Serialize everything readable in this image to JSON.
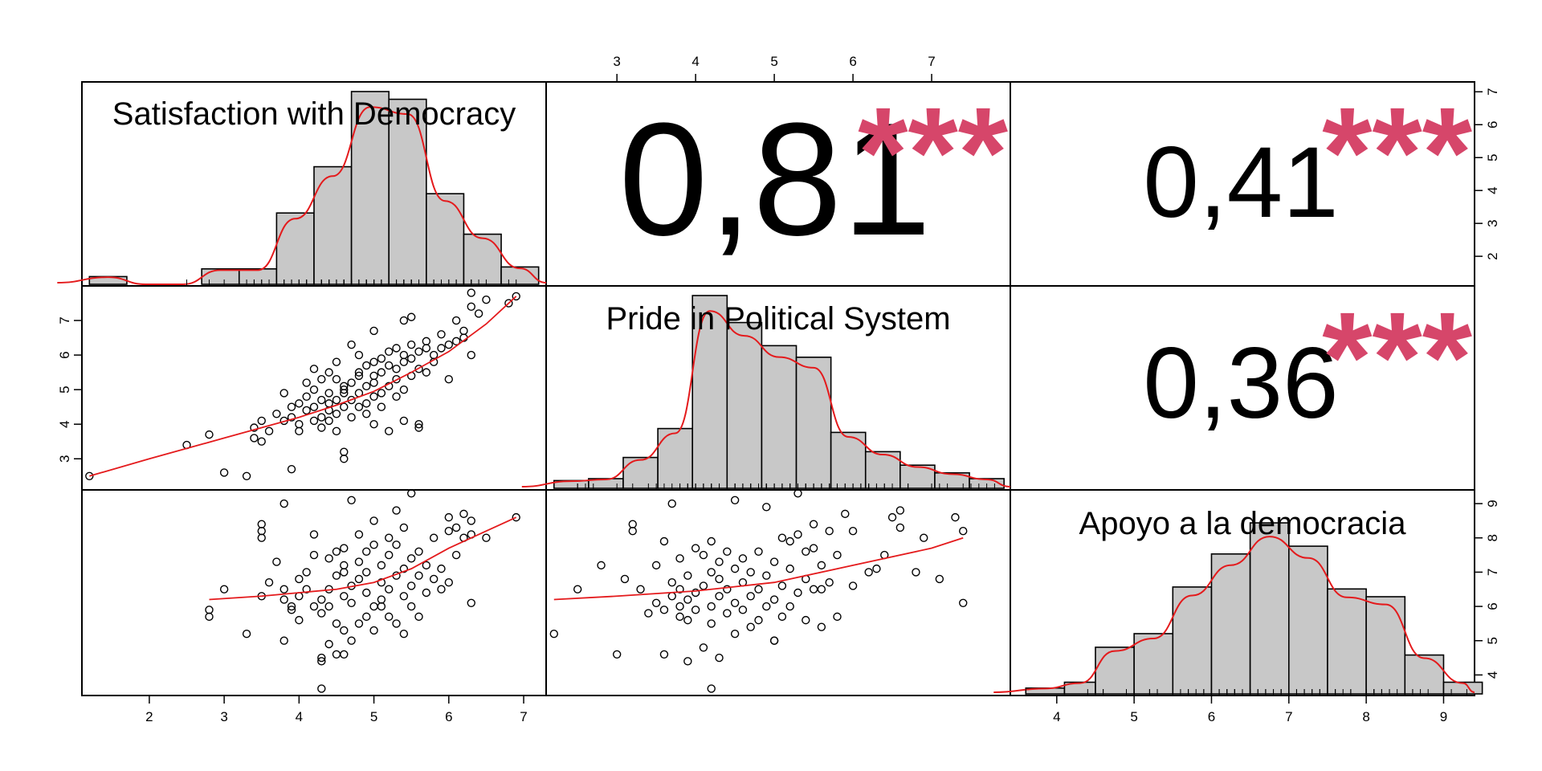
{
  "colors": {
    "stars": "#d6466a",
    "curve": "#e41a1c",
    "bar_fill": "#c8c8c8"
  },
  "chart_data": {
    "type": "scatter-matrix",
    "variables": [
      {
        "name": "Satisfaction with Democracy",
        "range": [
          1.1,
          7.3
        ],
        "ticks": [
          2,
          3,
          4,
          5,
          6,
          7
        ],
        "hist": {
          "breaks": [
            1.2,
            1.7,
            2.2,
            2.7,
            3.2,
            3.7,
            4.2,
            4.7,
            5.2,
            5.7,
            6.2,
            6.7,
            7.2
          ],
          "relative_heights": [
            0.04,
            0.0,
            0.0,
            0.08,
            0.08,
            0.37,
            0.61,
            1.0,
            0.96,
            0.47,
            0.26,
            0.09
          ]
        }
      },
      {
        "name": "Pride in Political System",
        "range": [
          2.1,
          8.0
        ],
        "ticks": [
          3,
          4,
          5,
          6,
          7
        ],
        "hist": {
          "breaks": [
            2.2,
            2.64,
            3.08,
            3.52,
            3.96,
            4.4,
            4.84,
            5.28,
            5.72,
            6.16,
            6.6,
            7.04,
            7.48,
            7.92
          ],
          "relative_heights": [
            0.04,
            0.05,
            0.16,
            0.31,
            1.0,
            0.86,
            0.74,
            0.68,
            0.29,
            0.19,
            0.12,
            0.08,
            0.05
          ]
        }
      },
      {
        "name": "Apoyo a la democracia",
        "range": [
          3.4,
          9.4
        ],
        "ticks": [
          4,
          5,
          6,
          7,
          8,
          9
        ],
        "hist": {
          "breaks": [
            3.6,
            4.1,
            4.5,
            5.0,
            5.5,
            6.0,
            6.5,
            7.0,
            7.5,
            8.0,
            8.5,
            9.0,
            9.5
          ],
          "relative_heights": [
            0.03,
            0.06,
            0.24,
            0.31,
            0.55,
            0.72,
            0.88,
            0.76,
            0.54,
            0.5,
            0.2,
            0.06
          ]
        }
      }
    ],
    "correlations": [
      {
        "pair": [
          "Satisfaction with Democracy",
          "Pride in Political System"
        ],
        "value": "0,81",
        "stars": "***"
      },
      {
        "pair": [
          "Satisfaction with Democracy",
          "Apoyo a la democracia"
        ],
        "value": "0,41",
        "stars": "***"
      },
      {
        "pair": [
          "Pride in Political System",
          "Apoyo a la democracia"
        ],
        "value": "0,36",
        "stars": "***"
      }
    ],
    "scatter_sat_vs_pride": [
      [
        1.2,
        2.5
      ],
      [
        2.5,
        3.4
      ],
      [
        2.8,
        3.7
      ],
      [
        3.0,
        2.6
      ],
      [
        3.3,
        2.5
      ],
      [
        3.4,
        3.9
      ],
      [
        3.4,
        3.6
      ],
      [
        3.5,
        4.1
      ],
      [
        3.5,
        3.5
      ],
      [
        3.6,
        3.8
      ],
      [
        3.7,
        4.3
      ],
      [
        3.8,
        4.1
      ],
      [
        3.8,
        4.9
      ],
      [
        3.9,
        2.7
      ],
      [
        3.9,
        4.2
      ],
      [
        3.9,
        4.5
      ],
      [
        4.0,
        3.8
      ],
      [
        4.0,
        4.6
      ],
      [
        4.0,
        4.0
      ],
      [
        4.1,
        4.4
      ],
      [
        4.1,
        4.8
      ],
      [
        4.2,
        4.1
      ],
      [
        4.2,
        4.5
      ],
      [
        4.2,
        5.0
      ],
      [
        4.3,
        4.2
      ],
      [
        4.3,
        4.7
      ],
      [
        4.3,
        3.9
      ],
      [
        4.3,
        5.3
      ],
      [
        4.4,
        4.4
      ],
      [
        4.4,
        4.6
      ],
      [
        4.4,
        4.9
      ],
      [
        4.4,
        4.1
      ],
      [
        4.5,
        3.8
      ],
      [
        4.5,
        5.3
      ],
      [
        4.5,
        4.3
      ],
      [
        4.5,
        4.7
      ],
      [
        4.6,
        4.5
      ],
      [
        4.6,
        5.0
      ],
      [
        4.6,
        4.9
      ],
      [
        4.6,
        5.1
      ],
      [
        4.6,
        3.0
      ],
      [
        4.6,
        3.2
      ],
      [
        4.7,
        4.2
      ],
      [
        4.7,
        5.2
      ],
      [
        4.7,
        6.3
      ],
      [
        4.7,
        4.7
      ],
      [
        4.8,
        5.4
      ],
      [
        4.8,
        4.5
      ],
      [
        4.8,
        4.9
      ],
      [
        4.8,
        5.5
      ],
      [
        4.9,
        4.6
      ],
      [
        4.9,
        5.1
      ],
      [
        4.9,
        5.7
      ],
      [
        4.9,
        4.3
      ],
      [
        5.0,
        5.2
      ],
      [
        5.0,
        5.4
      ],
      [
        5.0,
        4.8
      ],
      [
        5.0,
        6.7
      ],
      [
        5.0,
        5.8
      ],
      [
        5.1,
        4.9
      ],
      [
        5.1,
        5.5
      ],
      [
        5.1,
        5.9
      ],
      [
        5.1,
        4.5
      ],
      [
        5.2,
        5.1
      ],
      [
        5.2,
        5.7
      ],
      [
        5.2,
        6.1
      ],
      [
        5.2,
        3.8
      ],
      [
        5.3,
        5.3
      ],
      [
        5.3,
        5.6
      ],
      [
        5.3,
        6.2
      ],
      [
        5.3,
        4.8
      ],
      [
        5.4,
        5.0
      ],
      [
        5.4,
        5.8
      ],
      [
        5.4,
        6.0
      ],
      [
        5.4,
        7.0
      ],
      [
        5.4,
        4.1
      ],
      [
        5.5,
        5.4
      ],
      [
        5.5,
        5.9
      ],
      [
        5.5,
        6.3
      ],
      [
        5.5,
        7.1
      ],
      [
        5.6,
        5.6
      ],
      [
        5.6,
        6.1
      ],
      [
        5.6,
        4.0
      ],
      [
        5.6,
        3.9
      ],
      [
        5.7,
        5.5
      ],
      [
        5.7,
        6.2
      ],
      [
        5.7,
        6.4
      ],
      [
        5.8,
        5.8
      ],
      [
        5.8,
        6.0
      ],
      [
        5.9,
        6.2
      ],
      [
        5.9,
        6.6
      ],
      [
        6.0,
        6.3
      ],
      [
        6.0,
        5.3
      ],
      [
        6.1,
        6.4
      ],
      [
        6.1,
        7.0
      ],
      [
        6.2,
        6.7
      ],
      [
        6.2,
        6.5
      ],
      [
        6.3,
        7.4
      ],
      [
        6.3,
        7.8
      ],
      [
        6.3,
        6.0
      ],
      [
        6.4,
        7.2
      ],
      [
        6.5,
        7.6
      ],
      [
        6.8,
        7.5
      ],
      [
        6.9,
        7.7
      ],
      [
        4.2,
        5.6
      ],
      [
        4.5,
        5.8
      ],
      [
        4.8,
        6.0
      ],
      [
        5.0,
        4.0
      ],
      [
        4.4,
        5.5
      ],
      [
        4.1,
        5.2
      ]
    ],
    "scatter_sat_vs_apoyo": [
      [
        2.8,
        5.7
      ],
      [
        2.8,
        5.9
      ],
      [
        3.0,
        6.5
      ],
      [
        3.3,
        5.2
      ],
      [
        3.5,
        6.3
      ],
      [
        3.5,
        8.0
      ],
      [
        3.5,
        8.2
      ],
      [
        3.5,
        8.4
      ],
      [
        3.6,
        6.7
      ],
      [
        3.7,
        7.3
      ],
      [
        3.8,
        5.0
      ],
      [
        3.8,
        6.2
      ],
      [
        3.8,
        6.5
      ],
      [
        3.8,
        9.0
      ],
      [
        3.9,
        5.9
      ],
      [
        3.9,
        6.0
      ],
      [
        4.0,
        5.6
      ],
      [
        4.0,
        6.8
      ],
      [
        4.1,
        6.5
      ],
      [
        4.1,
        7.0
      ],
      [
        4.2,
        6.0
      ],
      [
        4.2,
        7.5
      ],
      [
        4.2,
        8.1
      ],
      [
        4.3,
        4.5
      ],
      [
        4.3,
        4.4
      ],
      [
        4.3,
        3.6
      ],
      [
        4.3,
        6.2
      ],
      [
        4.3,
        5.8
      ],
      [
        4.4,
        6.5
      ],
      [
        4.4,
        7.4
      ],
      [
        4.4,
        4.9
      ],
      [
        4.5,
        4.6
      ],
      [
        4.5,
        5.5
      ],
      [
        4.5,
        6.9
      ],
      [
        4.5,
        7.6
      ],
      [
        4.6,
        4.6
      ],
      [
        4.6,
        5.3
      ],
      [
        4.6,
        6.3
      ],
      [
        4.6,
        7.2
      ],
      [
        4.6,
        7.7
      ],
      [
        4.7,
        5.0
      ],
      [
        4.7,
        6.1
      ],
      [
        4.7,
        6.6
      ],
      [
        4.7,
        9.1
      ],
      [
        4.8,
        5.5
      ],
      [
        4.8,
        6.8
      ],
      [
        4.8,
        7.3
      ],
      [
        4.8,
        8.1
      ],
      [
        4.9,
        5.7
      ],
      [
        4.9,
        6.4
      ],
      [
        4.9,
        7.0
      ],
      [
        4.9,
        7.6
      ],
      [
        5.0,
        5.3
      ],
      [
        5.0,
        6.0
      ],
      [
        5.0,
        7.8
      ],
      [
        5.0,
        8.5
      ],
      [
        5.1,
        6.7
      ],
      [
        5.1,
        7.2
      ],
      [
        5.1,
        6.2
      ],
      [
        5.2,
        5.7
      ],
      [
        5.2,
        6.5
      ],
      [
        5.2,
        7.5
      ],
      [
        5.2,
        8.0
      ],
      [
        5.3,
        5.5
      ],
      [
        5.3,
        6.9
      ],
      [
        5.3,
        7.8
      ],
      [
        5.3,
        8.8
      ],
      [
        5.4,
        5.2
      ],
      [
        5.4,
        6.3
      ],
      [
        5.4,
        7.1
      ],
      [
        5.4,
        8.3
      ],
      [
        5.5,
        6.0
      ],
      [
        5.5,
        6.6
      ],
      [
        5.5,
        7.4
      ],
      [
        5.5,
        9.3
      ],
      [
        5.6,
        5.7
      ],
      [
        5.6,
        6.9
      ],
      [
        5.6,
        7.6
      ],
      [
        5.7,
        6.4
      ],
      [
        5.7,
        7.2
      ],
      [
        5.8,
        6.8
      ],
      [
        5.8,
        8.0
      ],
      [
        5.9,
        6.5
      ],
      [
        5.9,
        7.1
      ],
      [
        6.0,
        8.6
      ],
      [
        6.0,
        8.2
      ],
      [
        6.0,
        6.7
      ],
      [
        6.1,
        8.3
      ],
      [
        6.1,
        7.5
      ],
      [
        6.2,
        8.7
      ],
      [
        6.2,
        8.0
      ],
      [
        6.3,
        8.5
      ],
      [
        6.3,
        8.1
      ],
      [
        6.3,
        6.1
      ],
      [
        6.5,
        8.0
      ],
      [
        6.9,
        8.6
      ],
      [
        4.0,
        6.3
      ],
      [
        4.4,
        6.0
      ],
      [
        4.6,
        7.0
      ],
      [
        5.1,
        6.0
      ]
    ],
    "scatter_pride_vs_apoyo": [
      [
        2.2,
        5.2
      ],
      [
        2.5,
        6.5
      ],
      [
        2.8,
        7.2
      ],
      [
        3.0,
        4.6
      ],
      [
        3.1,
        6.8
      ],
      [
        3.2,
        8.2
      ],
      [
        3.2,
        8.4
      ],
      [
        3.3,
        6.5
      ],
      [
        3.4,
        5.8
      ],
      [
        3.5,
        6.1
      ],
      [
        3.5,
        7.2
      ],
      [
        3.6,
        4.6
      ],
      [
        3.6,
        7.9
      ],
      [
        3.6,
        5.9
      ],
      [
        3.7,
        6.3
      ],
      [
        3.7,
        6.7
      ],
      [
        3.7,
        9.0
      ],
      [
        3.8,
        5.7
      ],
      [
        3.8,
        6.0
      ],
      [
        3.8,
        6.5
      ],
      [
        3.8,
        7.4
      ],
      [
        3.9,
        4.4
      ],
      [
        3.9,
        5.6
      ],
      [
        3.9,
        6.2
      ],
      [
        3.9,
        6.9
      ],
      [
        4.0,
        5.9
      ],
      [
        4.0,
        6.4
      ],
      [
        4.0,
        7.7
      ],
      [
        4.1,
        4.8
      ],
      [
        4.1,
        6.6
      ],
      [
        4.1,
        7.5
      ],
      [
        4.2,
        3.6
      ],
      [
        4.2,
        5.5
      ],
      [
        4.2,
        6.0
      ],
      [
        4.2,
        7.0
      ],
      [
        4.2,
        7.9
      ],
      [
        4.3,
        4.5
      ],
      [
        4.3,
        6.3
      ],
      [
        4.3,
        6.8
      ],
      [
        4.3,
        7.3
      ],
      [
        4.4,
        5.8
      ],
      [
        4.4,
        6.5
      ],
      [
        4.4,
        7.6
      ],
      [
        4.5,
        5.2
      ],
      [
        4.5,
        6.1
      ],
      [
        4.5,
        7.1
      ],
      [
        4.5,
        9.1
      ],
      [
        4.6,
        5.9
      ],
      [
        4.6,
        6.7
      ],
      [
        4.6,
        7.4
      ],
      [
        4.7,
        5.4
      ],
      [
        4.7,
        6.3
      ],
      [
        4.7,
        7.0
      ],
      [
        4.8,
        5.6
      ],
      [
        4.8,
        6.5
      ],
      [
        4.8,
        7.6
      ],
      [
        4.9,
        6.0
      ],
      [
        4.9,
        6.9
      ],
      [
        4.9,
        8.9
      ],
      [
        5.0,
        5.0
      ],
      [
        5.0,
        5.0
      ],
      [
        5.0,
        6.2
      ],
      [
        5.0,
        7.3
      ],
      [
        5.1,
        5.7
      ],
      [
        5.1,
        6.6
      ],
      [
        5.1,
        8.0
      ],
      [
        5.2,
        6.0
      ],
      [
        5.2,
        7.1
      ],
      [
        5.2,
        7.9
      ],
      [
        5.3,
        6.4
      ],
      [
        5.3,
        8.1
      ],
      [
        5.3,
        9.3
      ],
      [
        5.4,
        5.6
      ],
      [
        5.4,
        6.8
      ],
      [
        5.4,
        7.6
      ],
      [
        5.5,
        6.5
      ],
      [
        5.5,
        7.7
      ],
      [
        5.5,
        8.4
      ],
      [
        5.6,
        5.4
      ],
      [
        5.6,
        6.5
      ],
      [
        5.6,
        7.2
      ],
      [
        5.7,
        6.7
      ],
      [
        5.7,
        8.2
      ],
      [
        5.8,
        5.7
      ],
      [
        5.8,
        7.5
      ],
      [
        5.9,
        8.7
      ],
      [
        6.0,
        6.6
      ],
      [
        6.0,
        8.2
      ],
      [
        6.3,
        7.1
      ],
      [
        6.5,
        8.6
      ],
      [
        6.6,
        8.8
      ],
      [
        6.8,
        7.0
      ],
      [
        6.9,
        8.0
      ],
      [
        7.1,
        6.8
      ],
      [
        7.3,
        8.6
      ],
      [
        7.4,
        6.1
      ],
      [
        7.4,
        8.2
      ],
      [
        6.6,
        8.3
      ],
      [
        6.4,
        7.5
      ],
      [
        6.2,
        7.0
      ]
    ],
    "smoothers": {
      "sat_vs_pride": [
        [
          1.2,
          2.5
        ],
        [
          2.0,
          3.0
        ],
        [
          3.0,
          3.6
        ],
        [
          4.0,
          4.2
        ],
        [
          4.5,
          4.55
        ],
        [
          5.0,
          4.95
        ],
        [
          5.5,
          5.5
        ],
        [
          6.0,
          6.1
        ],
        [
          6.5,
          6.9
        ],
        [
          6.9,
          7.7
        ]
      ],
      "sat_vs_apoyo": [
        [
          2.8,
          6.2
        ],
        [
          3.5,
          6.3
        ],
        [
          4.0,
          6.4
        ],
        [
          4.5,
          6.5
        ],
        [
          5.0,
          6.7
        ],
        [
          5.5,
          7.1
        ],
        [
          6.0,
          7.7
        ],
        [
          6.5,
          8.2
        ],
        [
          6.9,
          8.6
        ]
      ],
      "pride_vs_apoyo": [
        [
          2.2,
          6.2
        ],
        [
          3.0,
          6.3
        ],
        [
          4.0,
          6.45
        ],
        [
          5.0,
          6.7
        ],
        [
          6.0,
          7.2
        ],
        [
          7.0,
          7.7
        ],
        [
          7.4,
          8.0
        ]
      ]
    }
  }
}
